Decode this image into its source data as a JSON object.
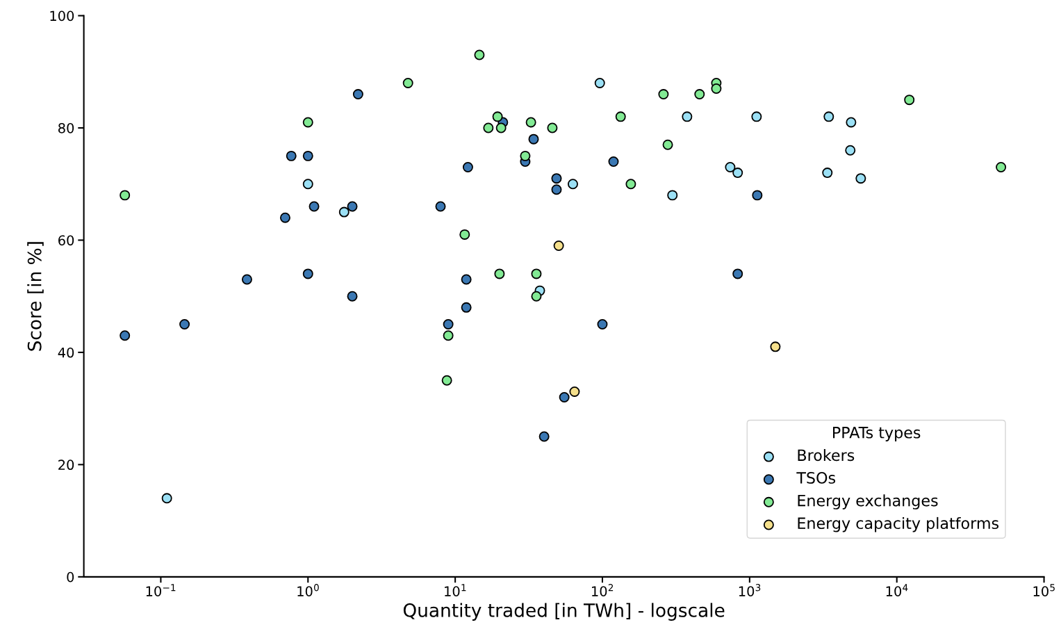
{
  "chart_data": {
    "type": "scatter",
    "xlabel": "Quantity traded [in TWh] - logscale",
    "ylabel": "Score [in %]",
    "legend_title": "PPATs types",
    "legend": "bottom right",
    "log": "x",
    "marker": "circle",
    "grid": false,
    "xlim": [
      0.03,
      100000
    ],
    "ylim": [
      0,
      100
    ],
    "xticks": [
      {
        "value": 0.1,
        "label": "10$^{−1}$"
      },
      {
        "value": 1,
        "label": "10$^{0}$"
      },
      {
        "value": 10,
        "label": "10$^{1}$"
      },
      {
        "value": 100,
        "label": "10$^{2}$"
      },
      {
        "value": 1000,
        "label": "10$^{3}$"
      },
      {
        "value": 10000,
        "label": "10$^{4}$"
      },
      {
        "value": 100000,
        "label": "10$^{5}$"
      }
    ],
    "yticks": [
      0,
      20,
      40,
      60,
      80,
      100
    ],
    "series": [
      {
        "name": "Brokers",
        "color": "#9be0f5",
        "x": [
          0.11,
          1.0,
          1.76,
          37.6,
          63,
          96,
          299,
          376,
          738,
          830,
          1115,
          3375,
          3450,
          4890,
          4830,
          5690
        ],
        "values": [
          14,
          70,
          65,
          51,
          70,
          88,
          68,
          82,
          73,
          72,
          82,
          72,
          82,
          81,
          76,
          71
        ]
      },
      {
        "name": "TSOs",
        "color": "#3b78b3",
        "x": [
          0.057,
          0.145,
          0.385,
          0.7,
          0.77,
          1.0,
          1.0,
          1.1,
          2.0,
          2.0,
          2.19,
          7.95,
          8.97,
          11.9,
          11.9,
          12.2,
          21.1,
          29.9,
          34.1,
          48.8,
          48.8,
          55.1,
          40.2,
          100,
          119,
          830,
          1127
        ],
        "values": [
          43,
          45,
          53,
          64,
          75,
          75,
          54,
          66,
          66,
          50,
          86,
          66,
          45,
          53,
          48,
          73,
          81,
          74,
          78,
          71,
          69,
          32,
          25,
          45,
          74,
          54,
          68
        ]
      },
      {
        "name": "Energy exchanges",
        "color": "#82ea94",
        "x": [
          0.057,
          1.0,
          4.78,
          14.6,
          11.6,
          8.97,
          8.78,
          16.8,
          19.4,
          20.5,
          20.0,
          29.9,
          32.7,
          35.6,
          35.6,
          45.7,
          133,
          156,
          260,
          278,
          457,
          594,
          594,
          12160,
          51000
        ],
        "values": [
          68,
          81,
          88,
          93,
          61,
          43,
          35,
          80,
          82,
          80,
          54,
          75,
          81,
          54,
          50,
          80,
          82,
          70,
          86,
          77,
          86,
          88,
          87,
          85,
          73
        ]
      },
      {
        "name": "Energy capacity platforms",
        "color": "#f5e08c",
        "x": [
          50.5,
          64.7,
          1496
        ],
        "values": [
          59,
          33,
          41
        ]
      }
    ]
  }
}
